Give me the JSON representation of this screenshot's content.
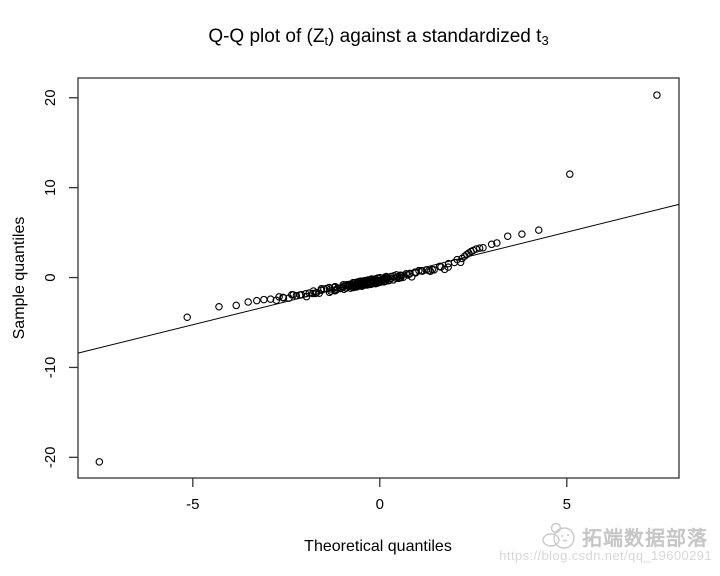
{
  "page": {
    "background": "#ffffff"
  },
  "figure": {
    "title_parts": [
      {
        "text": "Q-Q plot of (Z",
        "sub": false
      },
      {
        "text": "t",
        "sub": true
      },
      {
        "text": ") against a standardized t",
        "sub": false
      },
      {
        "text": "3",
        "sub": true
      }
    ]
  },
  "chart_data": {
    "type": "scatter",
    "title": "Q-Q plot of (Z_t) against a standardized t_3",
    "xlabel": "Theoretical quantiles",
    "ylabel": "Sample quantiles",
    "xlim": [
      -8.07,
      8.0
    ],
    "ylim": [
      -22.3,
      22.2
    ],
    "x_ticks": [
      -5,
      0,
      5
    ],
    "y_ticks": [
      -20,
      -10,
      0,
      10,
      20
    ],
    "grid": false,
    "legend": "none",
    "marker": "open-circle",
    "point_color": "#000000",
    "line_color": "#000000",
    "axis_color": "#333333",
    "reference_line": {
      "slope": 1.03,
      "intercept": -0.1
    },
    "points": [
      [
        -7.5,
        -20.5
      ],
      [
        -5.15,
        -4.42
      ],
      [
        -4.3,
        -3.25
      ],
      [
        -3.84,
        -3.1
      ],
      [
        -3.52,
        -2.72
      ],
      [
        -3.29,
        -2.57
      ],
      [
        -3.1,
        -2.45
      ],
      [
        -2.92,
        -2.4
      ],
      [
        2.2,
        2.12
      ],
      [
        2.27,
        2.38
      ],
      [
        2.33,
        2.58
      ],
      [
        2.38,
        2.73
      ],
      [
        2.44,
        2.9
      ],
      [
        2.5,
        3.02
      ],
      [
        2.58,
        3.18
      ],
      [
        2.67,
        3.27
      ],
      [
        2.76,
        3.32
      ],
      [
        2.99,
        3.7
      ],
      [
        3.13,
        3.85
      ],
      [
        3.42,
        4.6
      ],
      [
        3.8,
        4.83
      ],
      [
        4.25,
        5.28
      ],
      [
        5.08,
        11.5
      ],
      [
        7.41,
        20.3
      ]
    ],
    "dense_band": {
      "control_points": [
        [
          -2.8,
          -2.35
        ],
        [
          -2.5,
          -2.2
        ],
        [
          -2.2,
          -2.0
        ],
        [
          -1.9,
          -1.8
        ],
        [
          -1.6,
          -1.57
        ],
        [
          -1.3,
          -1.33
        ],
        [
          -1.0,
          -1.1
        ],
        [
          -0.7,
          -0.85
        ],
        [
          -0.4,
          -0.6
        ],
        [
          -0.1,
          -0.37
        ],
        [
          0.2,
          -0.15
        ],
        [
          0.5,
          0.08
        ],
        [
          0.8,
          0.32
        ],
        [
          1.1,
          0.55
        ],
        [
          1.4,
          0.8
        ],
        [
          1.7,
          1.1
        ],
        [
          1.9,
          1.4
        ],
        [
          2.05,
          1.7
        ],
        [
          2.15,
          1.95
        ]
      ],
      "count": 210,
      "y_jitter": 0.3,
      "x_jitter": 0.05
    }
  },
  "watermark": {
    "brand": "拓端数据部落",
    "url": "https://blog.csdn.net/qq_19600291"
  }
}
